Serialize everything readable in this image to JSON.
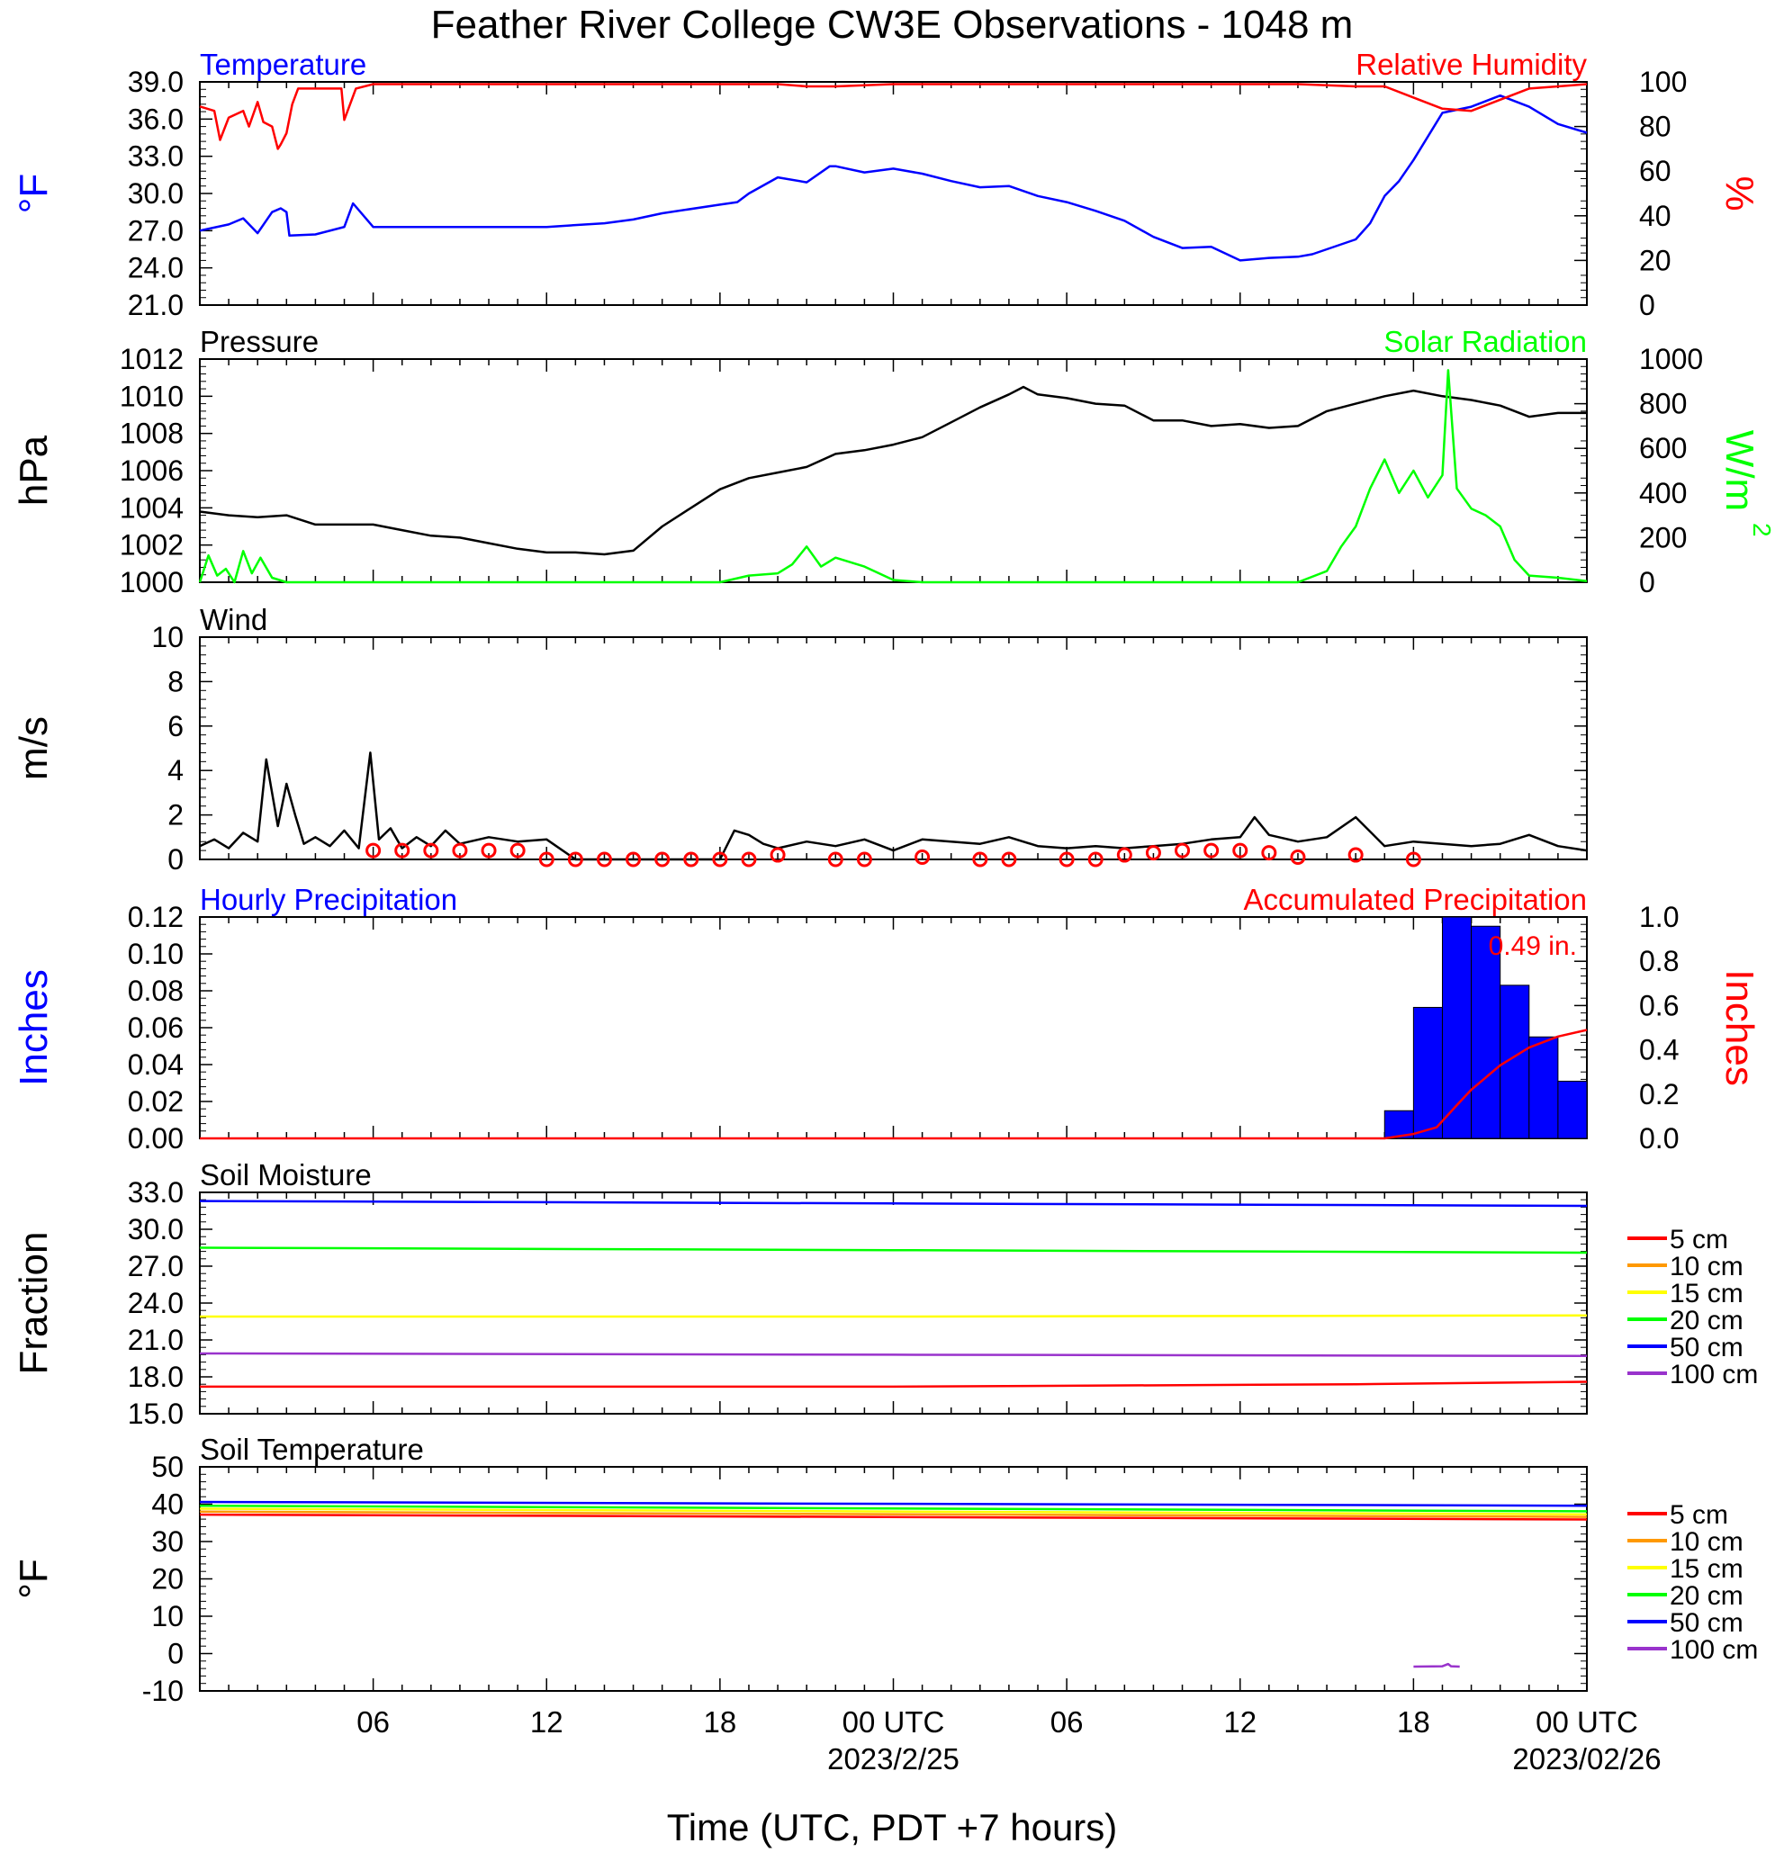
{
  "title": "Feather River College CW3E Observations - 1048 m",
  "x_axis": {
    "tick_labels": [
      "06",
      "12",
      "18",
      "00 UTC",
      "06",
      "12",
      "18",
      "00 UTC"
    ],
    "date_labels": [
      "2023/2/25",
      "2023/02/26"
    ],
    "label": "Time (UTC, PDT +7 hours)"
  },
  "colors": {
    "temperature": "#0000ff",
    "humidity": "#ff0000",
    "pressure": "#000000",
    "solar": "#00ff00",
    "wind": "#000000",
    "wind_barb": "#ff0000",
    "hourly_precip": "#0000ff",
    "accum_precip": "#ff0000",
    "d5": "#ff0000",
    "d10": "#ff9900",
    "d15": "#ffff00",
    "d20": "#00ff00",
    "d50": "#0000ff",
    "d100": "#9933cc"
  },
  "chart_data": [
    {
      "type": "line",
      "panel": "temp_rh",
      "left_title": "Temperature",
      "right_title": "Relative Humidity",
      "ylabel_left": "°F",
      "ylabel_right": "%",
      "ylim_left": [
        21.0,
        39.0
      ],
      "ylim_right": [
        0,
        100
      ],
      "yticks_left": [
        "39.0",
        "36.0",
        "33.0",
        "30.0",
        "27.0",
        "24.0",
        "21.0"
      ],
      "yticks_right": [
        "100",
        "80",
        "60",
        "40",
        "20",
        "0"
      ],
      "xlim_hours": [
        0,
        48
      ],
      "series": [
        {
          "name": "Temperature",
          "axis": "left",
          "color": "#0000ff",
          "x": [
            0,
            1,
            1.5,
            2,
            2.5,
            2.8,
            3,
            3.1,
            4,
            5,
            5.3,
            6,
            8,
            10,
            12,
            14,
            15,
            16,
            18,
            18.6,
            19,
            20,
            21,
            21.8,
            22,
            23,
            24,
            25,
            26,
            27,
            28,
            29,
            30,
            31,
            32,
            33,
            34,
            35,
            36,
            36.5,
            37,
            38,
            38.5,
            39,
            40,
            40.5,
            41,
            41.5,
            42,
            43,
            44,
            45,
            46,
            47,
            48
          ],
          "y": [
            27.0,
            27.5,
            28.0,
            26.8,
            28.5,
            28.8,
            28.5,
            26.6,
            26.7,
            27.3,
            29.2,
            27.3,
            27.3,
            27.3,
            27.3,
            27.6,
            27.9,
            28.4,
            29.1,
            29.3,
            30.0,
            31.3,
            30.9,
            32.2,
            32.2,
            31.7,
            32.0,
            31.6,
            31.0,
            30.5,
            30.6,
            29.8,
            29.3,
            28.6,
            27.8,
            26.5,
            25.6,
            25.7,
            24.6,
            24.7,
            24.8,
            24.9,
            25.1,
            25.5,
            26.3,
            27.6,
            29.8,
            31.0,
            32.7,
            36.5,
            37.0,
            37.9,
            37.0,
            35.6,
            34.9
          ]
        },
        {
          "name": "Relative Humidity",
          "axis": "right",
          "color": "#ff0000",
          "x": [
            0,
            0.5,
            0.7,
            1,
            1.5,
            1.7,
            2,
            2.2,
            2.5,
            2.7,
            2.8,
            3,
            3.2,
            3.4,
            4,
            4.5,
            4.9,
            5,
            5.4,
            6,
            8,
            10,
            12,
            14,
            16,
            18,
            19,
            20,
            21,
            22,
            24,
            26,
            28,
            30,
            32,
            34,
            36,
            38,
            40,
            41,
            42,
            43,
            44,
            45,
            46,
            47,
            48
          ],
          "y": [
            89,
            87,
            74,
            84,
            87,
            80,
            91,
            82,
            80,
            70,
            72,
            77,
            90,
            97,
            97,
            97,
            97,
            83,
            97,
            99,
            99,
            99,
            99,
            99,
            99,
            99,
            99,
            99,
            98,
            98,
            99,
            99,
            99,
            99,
            99,
            99,
            99,
            99,
            98,
            98,
            93,
            88,
            87,
            92,
            97,
            98,
            99
          ]
        }
      ]
    },
    {
      "type": "line",
      "panel": "pressure_solar",
      "left_title": "Pressure",
      "right_title": "Solar Radiation",
      "ylabel_left": "hPa",
      "ylabel_right": "W/m",
      "ylabel_right_superscript": "2",
      "ylim_left": [
        1000,
        1012
      ],
      "ylim_right": [
        0,
        1000
      ],
      "yticks_left": [
        "1012",
        "1010",
        "1008",
        "1006",
        "1004",
        "1002",
        "1000"
      ],
      "yticks_right": [
        "1000",
        "800",
        "600",
        "400",
        "200",
        "0"
      ],
      "xlim_hours": [
        0,
        48
      ],
      "series": [
        {
          "name": "Pressure",
          "axis": "left",
          "color": "#000000",
          "x": [
            0,
            1,
            2,
            3,
            4,
            5,
            6,
            7,
            8,
            9,
            10,
            11,
            12,
            13,
            14,
            15,
            16,
            17,
            18,
            19,
            20,
            21,
            22,
            23,
            24,
            25,
            26,
            27,
            28,
            28.5,
            29,
            30,
            31,
            32,
            33,
            34,
            35,
            36,
            37,
            38,
            39,
            40,
            41,
            42,
            43,
            44,
            45,
            46,
            47,
            48
          ],
          "y": [
            1003.8,
            1003.6,
            1003.5,
            1003.6,
            1003.1,
            1003.1,
            1003.1,
            1002.8,
            1002.5,
            1002.4,
            1002.1,
            1001.8,
            1001.6,
            1001.6,
            1001.5,
            1001.7,
            1003.0,
            1004.0,
            1005.0,
            1005.6,
            1005.9,
            1006.2,
            1006.9,
            1007.1,
            1007.4,
            1007.8,
            1008.6,
            1009.4,
            1010.1,
            1010.5,
            1010.1,
            1009.9,
            1009.6,
            1009.5,
            1008.7,
            1008.7,
            1008.4,
            1008.5,
            1008.3,
            1008.4,
            1009.2,
            1009.6,
            1010.0,
            1010.3,
            1010.0,
            1009.8,
            1009.5,
            1008.9,
            1009.1,
            1009.1
          ]
        },
        {
          "name": "Solar Radiation",
          "axis": "right",
          "color": "#00ff00",
          "x": [
            0,
            0.3,
            0.6,
            0.9,
            1.2,
            1.5,
            1.8,
            2.1,
            2.5,
            3,
            4,
            8,
            12,
            16,
            17,
            18,
            19,
            20,
            20.5,
            21,
            21.5,
            22,
            23,
            24,
            25,
            28,
            32,
            36,
            37,
            38,
            39,
            39.5,
            40,
            40.5,
            41,
            41.5,
            42,
            42.5,
            43,
            43.2,
            43.5,
            44,
            44.5,
            45,
            45.5,
            46,
            47,
            48
          ],
          "y": [
            0,
            120,
            30,
            60,
            0,
            140,
            40,
            110,
            20,
            0,
            0,
            0,
            0,
            0,
            0,
            0,
            30,
            40,
            80,
            160,
            70,
            110,
            70,
            10,
            0,
            0,
            0,
            0,
            0,
            0,
            50,
            160,
            250,
            420,
            550,
            400,
            500,
            380,
            480,
            950,
            420,
            330,
            300,
            250,
            100,
            30,
            20,
            5
          ]
        }
      ]
    },
    {
      "type": "line",
      "panel": "wind",
      "left_title": "Wind",
      "ylabel_left": "m/s",
      "ylim_left": [
        0,
        10
      ],
      "yticks_left": [
        "10",
        "8",
        "6",
        "4",
        "2",
        "0"
      ],
      "xlim_hours": [
        0,
        48
      ],
      "series": [
        {
          "name": "Wind",
          "axis": "left",
          "color": "#000000",
          "x": [
            0,
            0.5,
            1,
            1.5,
            2,
            2.3,
            2.7,
            3,
            3.3,
            3.6,
            4,
            4.5,
            5,
            5.5,
            5.9,
            6.2,
            6.6,
            7,
            7.5,
            8,
            8.5,
            9,
            10,
            11,
            12,
            13,
            14,
            15,
            16,
            17,
            17.5,
            18,
            18.5,
            19,
            19.5,
            20,
            21,
            22,
            23,
            24,
            25,
            26,
            27,
            28,
            29,
            30,
            31,
            32,
            33,
            34,
            35,
            36,
            36.5,
            37,
            38,
            39,
            40,
            41,
            42,
            43,
            44,
            45,
            46,
            47,
            48
          ],
          "y": [
            0.6,
            0.9,
            0.5,
            1.2,
            0.8,
            4.5,
            1.5,
            3.4,
            2.0,
            0.7,
            1.0,
            0.6,
            1.3,
            0.5,
            4.8,
            0.9,
            1.4,
            0.5,
            1.0,
            0.6,
            1.3,
            0.7,
            1.0,
            0.8,
            0.9,
            0.0,
            0.0,
            0.0,
            0.0,
            0.0,
            0.0,
            0.0,
            1.3,
            1.1,
            0.7,
            0.5,
            0.8,
            0.6,
            0.9,
            0.4,
            0.9,
            0.8,
            0.7,
            1.0,
            0.6,
            0.5,
            0.6,
            0.5,
            0.6,
            0.7,
            0.9,
            1.0,
            1.9,
            1.1,
            0.8,
            1.0,
            1.9,
            0.6,
            0.8,
            0.7,
            0.6,
            0.7,
            1.1,
            0.6,
            0.4
          ]
        },
        {
          "name": "Wind barbs",
          "marker": "circle",
          "color": "#ff0000",
          "x": [
            6,
            7,
            8,
            9,
            10,
            11,
            12,
            13,
            14,
            15,
            16,
            17,
            18,
            19,
            20,
            22,
            23,
            25,
            27,
            28,
            30,
            31,
            32,
            33,
            34,
            35,
            36,
            37,
            38,
            40,
            42
          ],
          "y": [
            0.4,
            0.4,
            0.4,
            0.4,
            0.4,
            0.4,
            0.0,
            0.0,
            0.0,
            0.0,
            0.0,
            0.0,
            0.0,
            0.0,
            0.2,
            0.0,
            0.0,
            0.1,
            0.0,
            0.0,
            0.0,
            0.0,
            0.2,
            0.3,
            0.4,
            0.4,
            0.4,
            0.3,
            0.1,
            0.2,
            0.0
          ]
        }
      ]
    },
    {
      "type": "bar",
      "panel": "precipitation",
      "left_title": "Hourly Precipitation",
      "right_title": "Accumulated Precipitation",
      "annotation": "0.49 in.",
      "ylabel_left": "Inches",
      "ylabel_right": "Inches",
      "ylim_left": [
        0.0,
        0.12
      ],
      "ylim_right": [
        0.0,
        1.0
      ],
      "yticks_left": [
        "0.12",
        "0.10",
        "0.08",
        "0.06",
        "0.04",
        "0.02",
        "0.00"
      ],
      "yticks_right": [
        "1.0",
        "0.8",
        "0.6",
        "0.4",
        "0.2",
        "0.0"
      ],
      "xlim_hours": [
        0,
        48
      ],
      "hourly_x": [
        42,
        43,
        44,
        45,
        46,
        47
      ],
      "hourly_values": [
        0.071,
        0.12,
        0.115,
        0.083,
        0.055,
        0.031
      ],
      "hourly_x_first": 41,
      "hourly_value_first": 0.015,
      "series": [
        {
          "name": "Accumulated Precipitation",
          "axis": "right",
          "color": "#ff0000",
          "x": [
            0,
            41,
            42,
            42.8,
            43.5,
            44,
            45,
            46,
            47,
            48
          ],
          "y": [
            0,
            0,
            0.02,
            0.05,
            0.15,
            0.22,
            0.33,
            0.41,
            0.46,
            0.49
          ]
        }
      ]
    },
    {
      "type": "line",
      "panel": "soil_moisture",
      "left_title": "Soil Moisture",
      "ylabel_left": "Fraction",
      "ylim_left": [
        15.0,
        33.0
      ],
      "yticks_left": [
        "33.0",
        "30.0",
        "27.0",
        "24.0",
        "21.0",
        "18.0",
        "15.0"
      ],
      "xlim_hours": [
        0,
        48
      ],
      "legend": [
        "5 cm",
        "10 cm",
        "15 cm",
        "20 cm",
        "50 cm",
        "100 cm"
      ],
      "series": [
        {
          "name": "50 cm",
          "color": "#0000ff",
          "x": [
            0,
            24,
            48
          ],
          "y": [
            32.3,
            32.1,
            31.9
          ]
        },
        {
          "name": "20 cm",
          "color": "#00ff00",
          "x": [
            0,
            24,
            48
          ],
          "y": [
            28.5,
            28.3,
            28.1
          ]
        },
        {
          "name": "15 cm",
          "color": "#ffff00",
          "x": [
            0,
            24,
            48
          ],
          "y": [
            22.9,
            22.9,
            23.0
          ]
        },
        {
          "name": "100 cm",
          "color": "#9933cc",
          "x": [
            0,
            24,
            48
          ],
          "y": [
            19.9,
            19.8,
            19.7
          ]
        },
        {
          "name": "5 cm",
          "color": "#ff0000",
          "x": [
            0,
            24,
            40,
            48
          ],
          "y": [
            17.2,
            17.2,
            17.4,
            17.6
          ]
        }
      ]
    },
    {
      "type": "line",
      "panel": "soil_temperature",
      "left_title": "Soil Temperature",
      "ylabel_left": "°F",
      "ylim_left": [
        -10,
        50
      ],
      "yticks_left": [
        "50",
        "40",
        "30",
        "20",
        "10",
        "0",
        "-10"
      ],
      "xlim_hours": [
        0,
        48
      ],
      "legend": [
        "5 cm",
        "10 cm",
        "15 cm",
        "20 cm",
        "50 cm",
        "100 cm"
      ],
      "series": [
        {
          "name": "50 cm",
          "color": "#0000ff",
          "x": [
            0,
            48
          ],
          "y": [
            40.6,
            39.6
          ]
        },
        {
          "name": "20 cm",
          "color": "#00ff00",
          "x": [
            0,
            48
          ],
          "y": [
            39.6,
            38.1
          ]
        },
        {
          "name": "15 cm",
          "color": "#ffff00",
          "x": [
            0,
            48
          ],
          "y": [
            38.8,
            37.3
          ]
        },
        {
          "name": "10 cm",
          "color": "#ff9900",
          "x": [
            0,
            48
          ],
          "y": [
            38.0,
            36.6
          ]
        },
        {
          "name": "5 cm",
          "color": "#ff0000",
          "x": [
            0,
            48
          ],
          "y": [
            37.2,
            35.9
          ]
        },
        {
          "name": "100 cm",
          "color": "#9933cc",
          "x": [
            42,
            43,
            43.2,
            43.3,
            43.6
          ],
          "y": [
            -3.5,
            -3.4,
            -2.8,
            -3.4,
            -3.5
          ]
        }
      ]
    }
  ]
}
